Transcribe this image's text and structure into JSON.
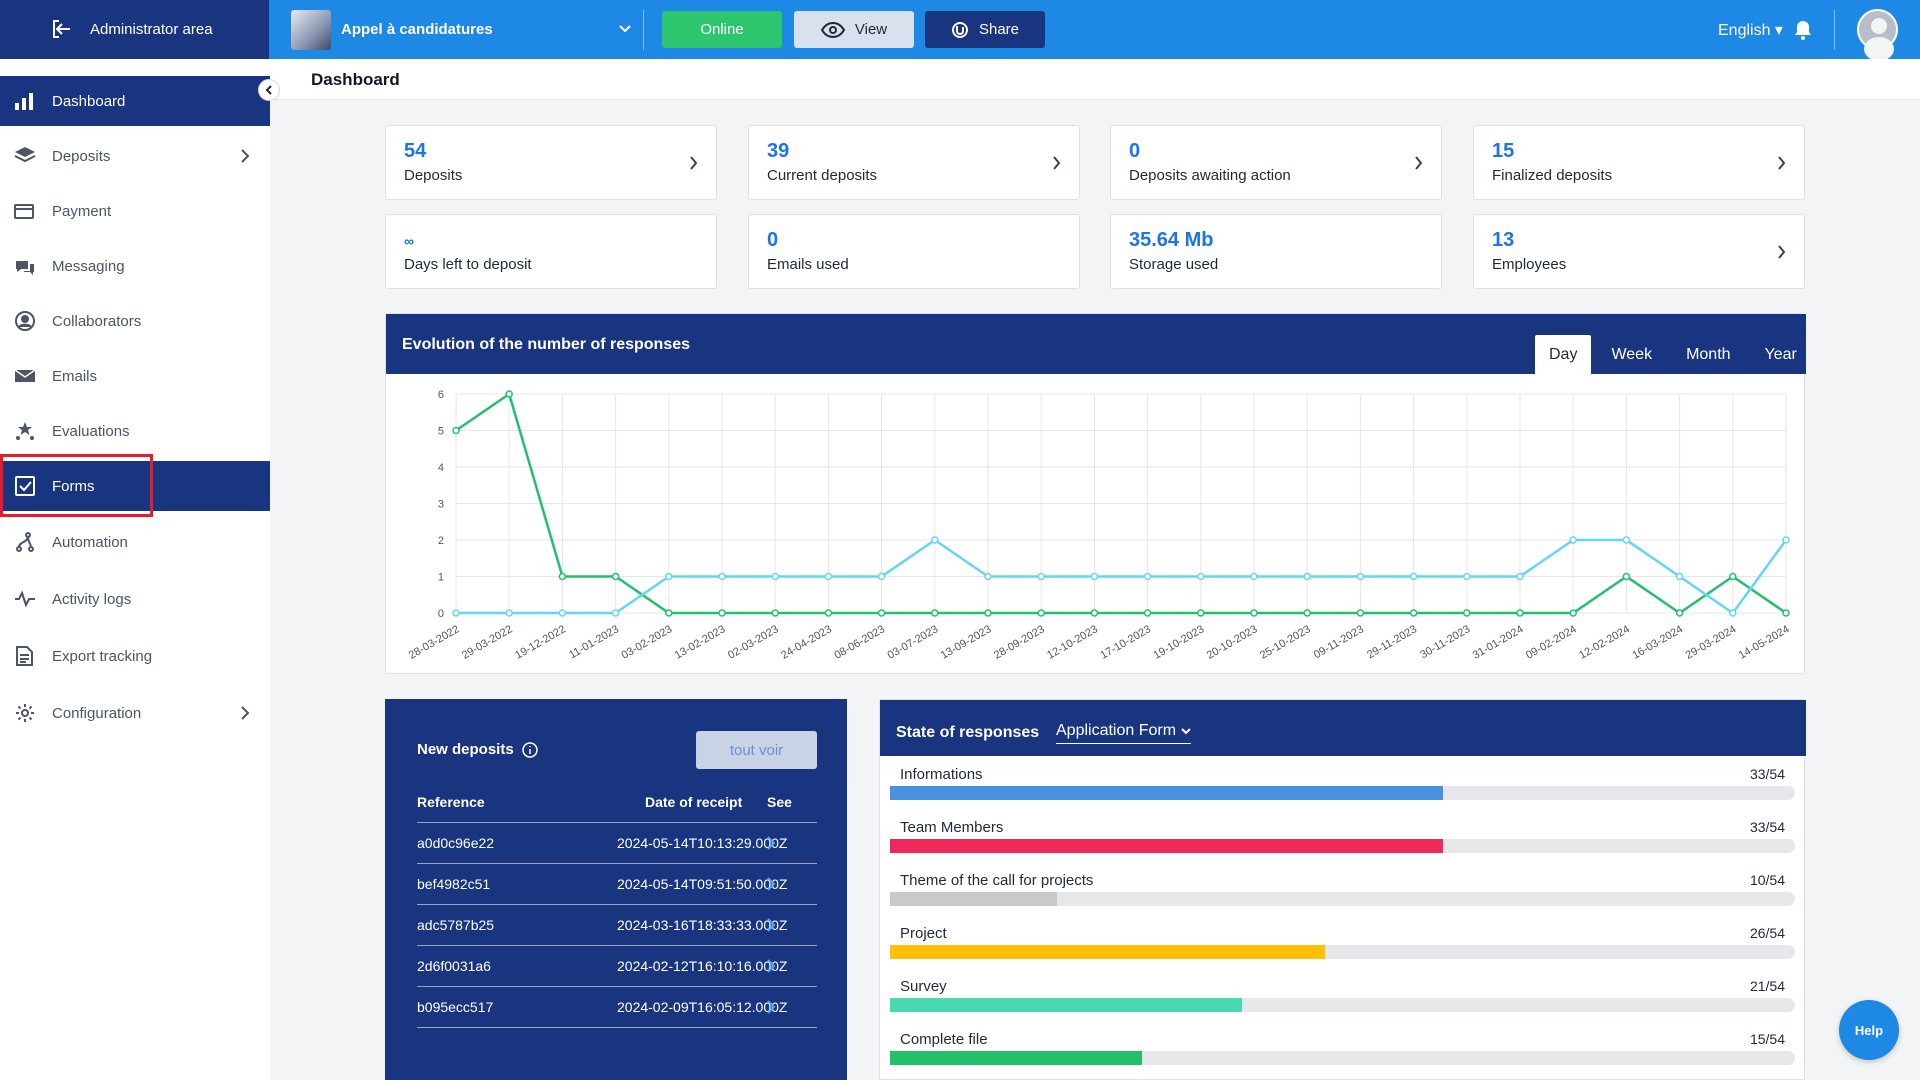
{
  "topbar": {
    "admin_label": "Administrator area",
    "project_name": "Appel à candidatures",
    "online_label": "Online",
    "view_label": "View",
    "share_label": "Share",
    "language": "English",
    "icons": [
      "exit-icon",
      "chevron-down-icon",
      "eye-icon",
      "share-icon",
      "bell-icon",
      "user-avatar"
    ]
  },
  "sidebar": {
    "items": [
      {
        "label": "Dashboard",
        "icon": "bar-chart-icon",
        "active": true
      },
      {
        "label": "Deposits",
        "icon": "layers-icon",
        "has_arrow": true
      },
      {
        "label": "Payment",
        "icon": "credit-card-icon"
      },
      {
        "label": "Messaging",
        "icon": "chat-icon"
      },
      {
        "label": "Collaborators",
        "icon": "user-circle-icon"
      },
      {
        "label": "Emails",
        "icon": "mail-icon"
      },
      {
        "label": "Evaluations",
        "icon": "stars-icon"
      },
      {
        "label": "Forms",
        "icon": "checkbox-icon",
        "active": true
      },
      {
        "label": "Automation",
        "icon": "flow-icon"
      },
      {
        "label": "Activity logs",
        "icon": "pulse-icon"
      },
      {
        "label": "Export tracking",
        "icon": "document-icon"
      },
      {
        "label": "Configuration",
        "icon": "gear-icon",
        "has_arrow": true
      }
    ]
  },
  "header": {
    "title": "Dashboard"
  },
  "stats": [
    {
      "value": "54",
      "label": "Deposits",
      "arrow": true
    },
    {
      "value": "39",
      "label": "Current deposits",
      "arrow": true
    },
    {
      "value": "0",
      "label": "Deposits awaiting action",
      "arrow": true
    },
    {
      "value": "15",
      "label": "Finalized deposits",
      "arrow": true
    },
    {
      "value": "∞",
      "label": "Days left to deposit",
      "arrow": false
    },
    {
      "value": "0",
      "label": "Emails used",
      "arrow": false
    },
    {
      "value": "35.64 Mb",
      "label": "Storage used",
      "arrow": false
    },
    {
      "value": "13",
      "label": "Employees",
      "arrow": true
    }
  ],
  "chart_card": {
    "title": "Evolution of the number of responses",
    "tabs": [
      "Day",
      "Week",
      "Month",
      "Year"
    ],
    "active_tab": "Day"
  },
  "chart_data": {
    "type": "line",
    "x": [
      "28-03-2022",
      "29-03-2022",
      "19-12-2022",
      "11-01-2023",
      "03-02-2023",
      "13-02-2023",
      "02-03-2023",
      "24-04-2023",
      "08-06-2023",
      "03-07-2023",
      "13-09-2023",
      "28-09-2023",
      "12-10-2023",
      "17-10-2023",
      "19-10-2023",
      "20-10-2023",
      "25-10-2023",
      "09-11-2023",
      "29-11-2023",
      "30-11-2023",
      "31-01-2024",
      "09-02-2024",
      "12-02-2024",
      "16-03-2024",
      "29-03-2024",
      "14-05-2024"
    ],
    "series": [
      {
        "color": "#22c06b",
        "values": [
          5,
          6,
          1,
          1,
          0,
          0,
          0,
          0,
          0,
          0,
          0,
          0,
          0,
          0,
          0,
          0,
          0,
          0,
          0,
          0,
          0,
          0,
          1,
          0,
          1,
          0
        ]
      },
      {
        "color": "#62d6f2",
        "values": [
          0,
          0,
          0,
          0,
          1,
          1,
          1,
          1,
          1,
          2,
          1,
          1,
          1,
          1,
          1,
          1,
          1,
          1,
          1,
          1,
          1,
          2,
          2,
          1,
          0,
          2
        ]
      }
    ],
    "ylim": [
      0,
      6
    ],
    "yticks": [
      0,
      1,
      2,
      3,
      4,
      5,
      6
    ],
    "grid": true,
    "title": "Evolution of the number of responses"
  },
  "new_deposits": {
    "title": "New deposits",
    "button": "tout voir",
    "columns": [
      "Reference",
      "Date of receipt",
      "See"
    ],
    "rows": [
      {
        "ref": "a0d0c96e22",
        "date": "2024-05-14T10:13:29.000Z"
      },
      {
        "ref": "bef4982c51",
        "date": "2024-05-14T09:51:50.000Z"
      },
      {
        "ref": "adc5787b25",
        "date": "2024-03-16T18:33:33.000Z"
      },
      {
        "ref": "2d6f0031a6",
        "date": "2024-02-12T16:10:16.000Z"
      },
      {
        "ref": "b095ecc517",
        "date": "2024-02-09T16:05:12.000Z"
      }
    ]
  },
  "state_of_responses": {
    "title": "State of responses",
    "form_select": "Application Form",
    "items": [
      {
        "label": "Informations",
        "value": "33/54",
        "fraction": 0.611,
        "color": "#4a90e2"
      },
      {
        "label": "Team Members",
        "value": "33/54",
        "fraction": 0.611,
        "color": "#f0295c"
      },
      {
        "label": "Theme of the call for projects",
        "value": "10/54",
        "fraction": 0.185,
        "color": "#c9c9c9"
      },
      {
        "label": "Project",
        "value": "26/54",
        "fraction": 0.481,
        "color": "#ffc107"
      },
      {
        "label": "Survey",
        "value": "21/54",
        "fraction": 0.389,
        "color": "#48d9b2"
      },
      {
        "label": "Complete file",
        "value": "15/54",
        "fraction": 0.278,
        "color": "#22c06b"
      }
    ]
  },
  "help": {
    "label": "Help"
  }
}
